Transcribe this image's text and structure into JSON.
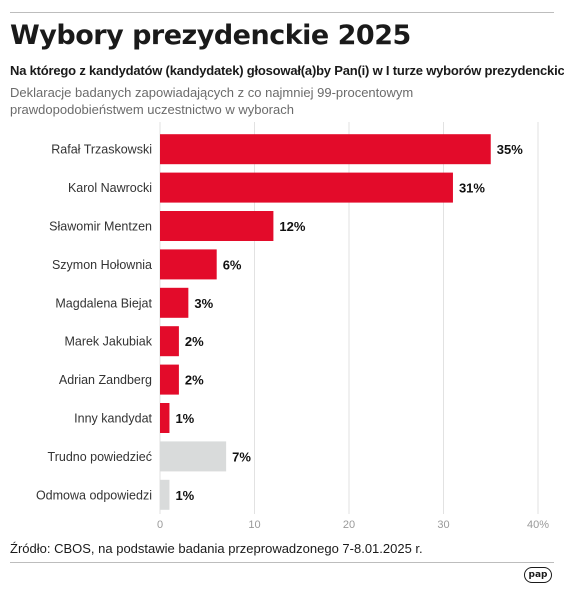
{
  "header": {
    "title": "Wybory prezydenckie 2025",
    "subtitle": "Na którego z kandydatów (kandydatek) głosował(a)by Pan(i) w I turze wyborów prezydenckich?",
    "note": "Deklaracje badanych zapowiadających z co najmniej 99-procentowym prawdopodobieństwem uczestnictwo w wyborach"
  },
  "footer": {
    "source": "Źródło: CBOS, na podstawie badania przeprowadzonego 7-8.01.2025 r.",
    "logo_text": "pap"
  },
  "colors": {
    "candidate_bar": "#e30b2a",
    "other_bar": "#d9dbdb",
    "grid": "#e2e2e2"
  },
  "chart_data": {
    "type": "bar",
    "orientation": "horizontal",
    "title": "Wybory prezydenckie 2025",
    "categories": [
      "Rafał Trzaskowski",
      "Karol Nawrocki",
      "Sławomir Mentzen",
      "Szymon Hołownia",
      "Magdalena Biejat",
      "Marek Jakubiak",
      "Adrian Zandberg",
      "Inny kandydat",
      "Trudno powiedzieć",
      "Odmowa odpowiedzi"
    ],
    "values": [
      35,
      31,
      12,
      6,
      3,
      2,
      2,
      1,
      7,
      1
    ],
    "value_labels": [
      "35%",
      "31%",
      "12%",
      "6%",
      "3%",
      "2%",
      "2%",
      "1%",
      "7%",
      "1%"
    ],
    "bar_colors": [
      "candidate",
      "candidate",
      "candidate",
      "candidate",
      "candidate",
      "candidate",
      "candidate",
      "candidate",
      "other",
      "other"
    ],
    "xlim": [
      0,
      40
    ],
    "xticks": [
      0,
      10,
      20,
      30,
      40
    ],
    "xtick_labels": [
      "0",
      "10",
      "20",
      "30",
      "40%"
    ],
    "grid": true,
    "xlabel": "",
    "ylabel": ""
  }
}
